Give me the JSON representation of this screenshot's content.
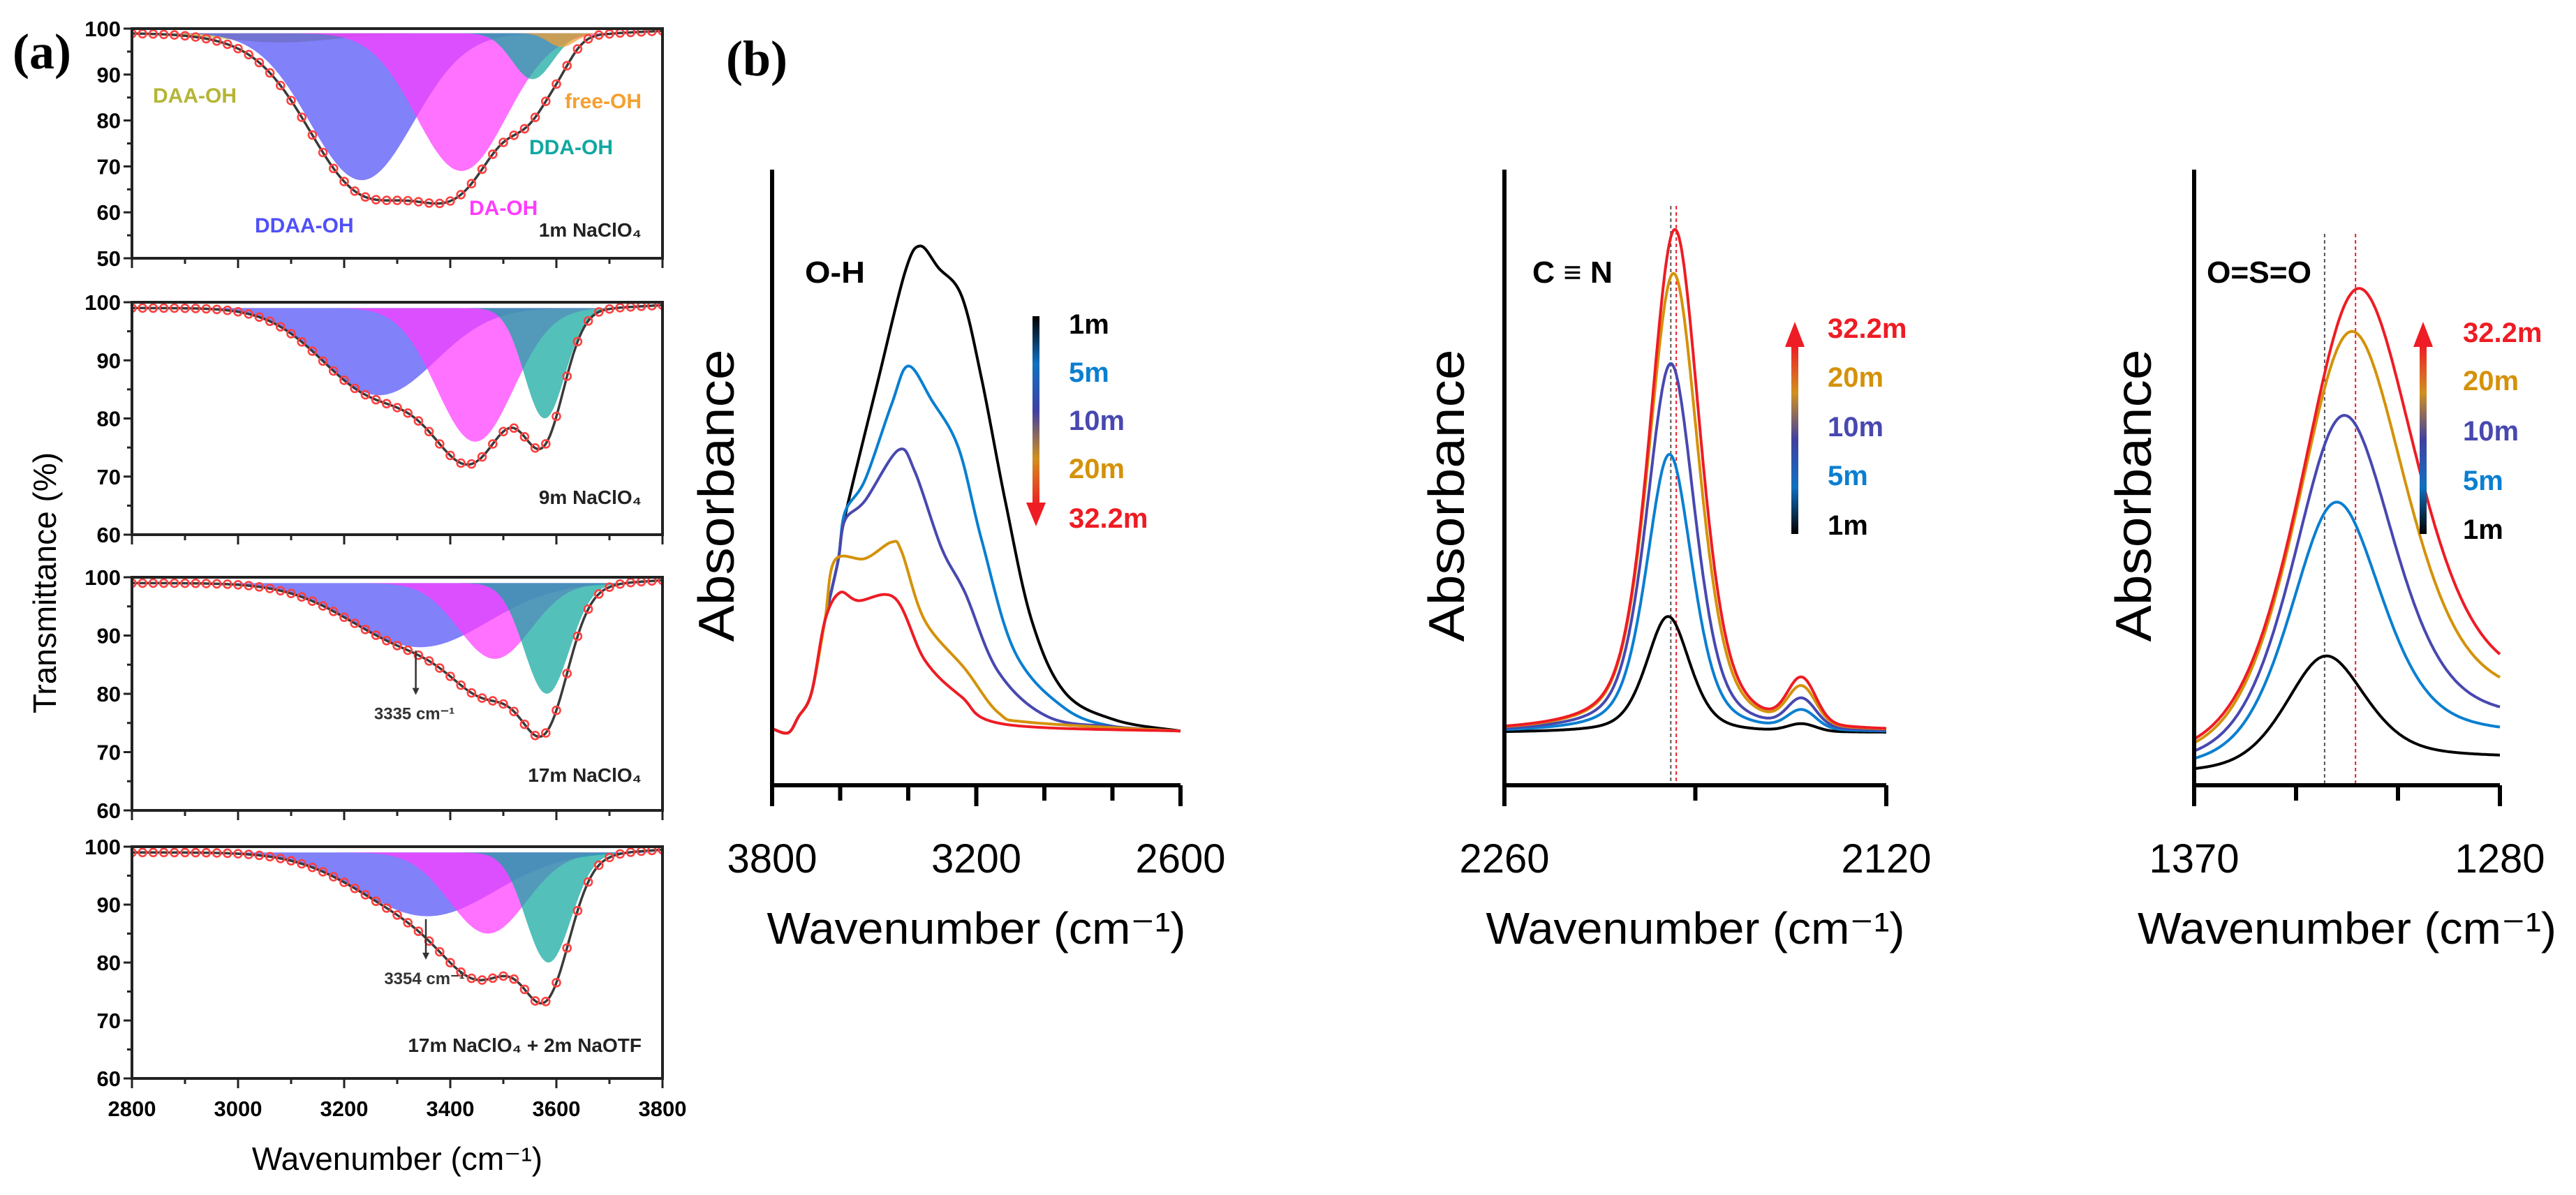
{
  "chart_data": [
    {
      "label": "(a)",
      "type": "area",
      "xlabel": "Wavenumber (cm⁻¹)",
      "ylabel": "Transmittance (%)",
      "xlim": [
        2800,
        3800
      ],
      "xticks": [
        2800,
        3000,
        3200,
        3400,
        3600,
        3800
      ],
      "baseline": 99,
      "fit_color": "#3a3a3a",
      "marker_color": "#ff4040",
      "subplots": [
        {
          "title": "1m NaClO₄",
          "ylim": [
            50,
            100
          ],
          "yticks": [
            50,
            60,
            70,
            80,
            90,
            100
          ],
          "components": [
            {
              "label": "DAA-OH",
              "center": 3080,
              "depth": 2,
              "fwhm": 250,
              "color": "#b5b535"
            },
            {
              "label": "DDAA-OH",
              "center": 3233,
              "depth": 32,
              "fwhm": 230,
              "color": "#5050f8"
            },
            {
              "label": "DA-OH",
              "center": 3421,
              "depth": 30,
              "fwhm": 200,
              "color": "#ff3cff"
            },
            {
              "label": "DDA-OH",
              "center": 3555,
              "depth": 10,
              "fwhm": 90,
              "color": "#10a8a0"
            },
            {
              "label": "free-OH",
              "center": 3610,
              "depth": 3,
              "fwhm": 60,
              "color": "#f5a030"
            }
          ]
        },
        {
          "title": "9m NaClO₄",
          "ylim": [
            60,
            100
          ],
          "yticks": [
            60,
            70,
            80,
            90,
            100
          ],
          "components": [
            {
              "center": 3266,
              "depth": 15,
              "fwhm": 250,
              "color": "#5050f8"
            },
            {
              "center": 3447,
              "depth": 23,
              "fwhm": 170,
              "color": "#ff3cff"
            },
            {
              "center": 3578,
              "depth": 19,
              "fwhm": 90,
              "color": "#10a8a0"
            }
          ]
        },
        {
          "title": "17m NaClO₄",
          "ylim": [
            60,
            100
          ],
          "yticks": [
            60,
            70,
            80,
            90,
            100
          ],
          "components": [
            {
              "center": 3343,
              "depth": 11,
              "fwhm": 300,
              "color": "#5050f8"
            },
            {
              "center": 3484,
              "depth": 13,
              "fwhm": 160,
              "color": "#ff3cff"
            },
            {
              "center": 3582,
              "depth": 19,
              "fwhm": 100,
              "color": "#10a8a0"
            }
          ],
          "annotation": {
            "text": "3335 cm⁻¹",
            "x": 3335,
            "from": 87.4,
            "to": 79.8
          }
        },
        {
          "title": "17m NaClO₄ + 2m NaOTF",
          "ylim": [
            60,
            100
          ],
          "yticks": [
            60,
            70,
            80,
            90,
            100
          ],
          "components": [
            {
              "center": 3357,
              "depth": 11,
              "fwhm": 300,
              "color": "#5050f8"
            },
            {
              "center": 3471,
              "depth": 14,
              "fwhm": 170,
              "color": "#ff3cff"
            },
            {
              "center": 3585,
              "depth": 19,
              "fwhm": 100,
              "color": "#10a8a0"
            }
          ],
          "annotation": {
            "text": "3354 cm⁻¹",
            "x": 3354,
            "from": 87.5,
            "to": 80.5
          }
        }
      ]
    },
    {
      "label": "(b)",
      "type": "line",
      "ylabel": "Absorbance",
      "xlabel": "Wavenumber (cm⁻¹)",
      "ylim": [
        0,
        1
      ],
      "gradient_colors": [
        "#000000",
        "#1070c0",
        "#4040a0",
        "#d09020",
        "#ee1c24"
      ],
      "subplots": [
        {
          "title": "O-H",
          "xlim": [
            3800,
            2600
          ],
          "xticks": [
            3800,
            3200,
            2600
          ],
          "minor_xticks": [
            3600,
            3400,
            3000,
            2800
          ],
          "legend_direction": "down",
          "legend": [
            {
              "text": "1m",
              "color": "#000000"
            },
            {
              "text": "5m",
              "color": "#0a7fd0"
            },
            {
              "text": "10m",
              "color": "#4848b0"
            },
            {
              "text": "20m",
              "color": "#d4920a"
            },
            {
              "text": "32.2m",
              "color": "#ee1c24"
            }
          ],
          "series": [
            {
              "name": "1m",
              "color": "#000000",
              "x": [
                3800,
                3753,
                3723,
                3684,
                3645,
                3606,
                3586,
                3488,
                3409,
                3365,
                3311,
                3243,
                3184,
                3115,
                3037,
                2939,
                2791,
                2600
              ],
              "y": [
                0.093,
                0.086,
                0.112,
                0.152,
                0.27,
                0.369,
                0.441,
                0.666,
                0.843,
                0.885,
                0.849,
                0.803,
                0.666,
                0.467,
                0.27,
                0.152,
                0.107,
                0.089
              ]
            },
            {
              "name": "5m",
              "color": "#0a7fd0",
              "x": [
                3800,
                3753,
                3723,
                3684,
                3645,
                3606,
                3586,
                3527,
                3449,
                3400,
                3331,
                3252,
                3184,
                3086,
                2939,
                2791,
                2600
              ],
              "y": [
                0.093,
                0.086,
                0.112,
                0.152,
                0.27,
                0.369,
                0.448,
                0.501,
                0.625,
                0.688,
                0.632,
                0.553,
                0.402,
                0.218,
                0.126,
                0.096,
                0.089
              ]
            },
            {
              "name": "10m",
              "color": "#4848b0",
              "x": [
                3800,
                3753,
                3723,
                3684,
                3645,
                3606,
                3586,
                3527,
                3429,
                3380,
                3302,
                3233,
                3135,
                2988,
                2791,
                2600
              ],
              "y": [
                0.093,
                0.086,
                0.112,
                0.152,
                0.27,
                0.369,
                0.435,
                0.467,
                0.55,
                0.514,
                0.389,
                0.316,
                0.186,
                0.112,
                0.096,
                0.089
              ]
            },
            {
              "name": "20m",
              "color": "#d4920a",
              "x": [
                3800,
                3753,
                3723,
                3684,
                3645,
                3616,
                3527,
                3449,
                3419,
                3351,
                3233,
                3135,
                3037,
                2600
              ],
              "y": [
                0.093,
                0.086,
                0.112,
                0.152,
                0.27,
                0.369,
                0.372,
                0.399,
                0.383,
                0.27,
                0.191,
                0.119,
                0.103,
                0.089
              ]
            },
            {
              "name": "32.2m",
              "color": "#ee1c24",
              "x": [
                3800,
                3753,
                3723,
                3684,
                3645,
                3601,
                3547,
                3439,
                3351,
                3243,
                3115,
                2600
              ],
              "y": [
                0.093,
                0.086,
                0.112,
                0.152,
                0.27,
                0.316,
                0.303,
                0.307,
                0.205,
                0.145,
                0.1,
                0.089
              ]
            }
          ]
        },
        {
          "title": "C ≡ N",
          "xlim": [
            2260,
            2120
          ],
          "xticks": [
            2260,
            2120
          ],
          "minor_xticks": [
            2190
          ],
          "legend_direction": "up",
          "reference_lines": [
            {
              "x": 2199,
              "color": "#555555"
            },
            {
              "x": 2197,
              "color": "#ee1c24"
            }
          ],
          "legend": [
            {
              "text": "32.2m",
              "color": "#ee1c24"
            },
            {
              "text": "20m",
              "color": "#d4920a"
            },
            {
              "text": "10m",
              "color": "#4848b0"
            },
            {
              "text": "5m",
              "color": "#0a7fd0"
            },
            {
              "text": "1m",
              "color": "#000000"
            }
          ],
          "peaks": [
            {
              "name": "1m",
              "color": "#000000",
              "center": 2200,
              "peak": 0.277,
              "fwhm": 19,
              "baseline": 0.086,
              "satellite_center": 2151,
              "satellite_height": 0.012
            },
            {
              "name": "5m",
              "color": "#0a7fd0",
              "center": 2199.5,
              "peak": 0.543,
              "fwhm": 20,
              "baseline": 0.086,
              "satellite_center": 2151,
              "satellite_height": 0.03
            },
            {
              "name": "10m",
              "color": "#4848b0",
              "center": 2199,
              "peak": 0.692,
              "fwhm": 21,
              "baseline": 0.086,
              "satellite_center": 2151,
              "satellite_height": 0.045
            },
            {
              "name": "20m",
              "color": "#d4920a",
              "center": 2198,
              "peak": 0.84,
              "fwhm": 22,
              "baseline": 0.086,
              "satellite_center": 2151,
              "satellite_height": 0.06
            },
            {
              "name": "32.2m",
              "color": "#ee1c24",
              "center": 2197.5,
              "peak": 0.912,
              "fwhm": 22,
              "baseline": 0.086,
              "satellite_center": 2151,
              "satellite_height": 0.072
            }
          ]
        },
        {
          "title": "O=S=O",
          "xlim": [
            1370,
            1280
          ],
          "xticks": [
            1370,
            1280
          ],
          "minor_xticks": [
            1340,
            1310
          ],
          "legend_direction": "up",
          "reference_lines": [
            {
              "x": 1331.6,
              "color": "#555555"
            },
            {
              "x": 1322.5,
              "color": "#ee1c24"
            }
          ],
          "legend": [
            {
              "text": "32.2m",
              "color": "#ee1c24"
            },
            {
              "text": "20m",
              "color": "#d4920a"
            },
            {
              "text": "10m",
              "color": "#4848b0"
            },
            {
              "text": "5m",
              "color": "#0a7fd0"
            },
            {
              "text": "1m",
              "color": "#000000"
            }
          ],
          "peaks": [
            {
              "name": "1m",
              "color": "#000000",
              "center": 1331.6,
              "peak": 0.212,
              "fwhm": 28,
              "baseline_left": 0.017,
              "baseline_right": 0.044
            },
            {
              "name": "5m",
              "color": "#0a7fd0",
              "center": 1328.7,
              "peak": 0.464,
              "fwhm": 32,
              "baseline_left": 0.017,
              "baseline_right": 0.077
            },
            {
              "name": "10m",
              "color": "#4848b0",
              "center": 1326.6,
              "peak": 0.606,
              "fwhm": 35,
              "baseline_left": 0.017,
              "baseline_right": 0.096
            },
            {
              "name": "20m",
              "color": "#d4920a",
              "center": 1324.6,
              "peak": 0.743,
              "fwhm": 38,
              "baseline_left": 0.017,
              "baseline_right": 0.123
            },
            {
              "name": "32.2m",
              "color": "#ee1c24",
              "center": 1322.7,
              "peak": 0.813,
              "fwhm": 40,
              "baseline_left": 0.017,
              "baseline_right": 0.139
            }
          ]
        }
      ]
    }
  ]
}
